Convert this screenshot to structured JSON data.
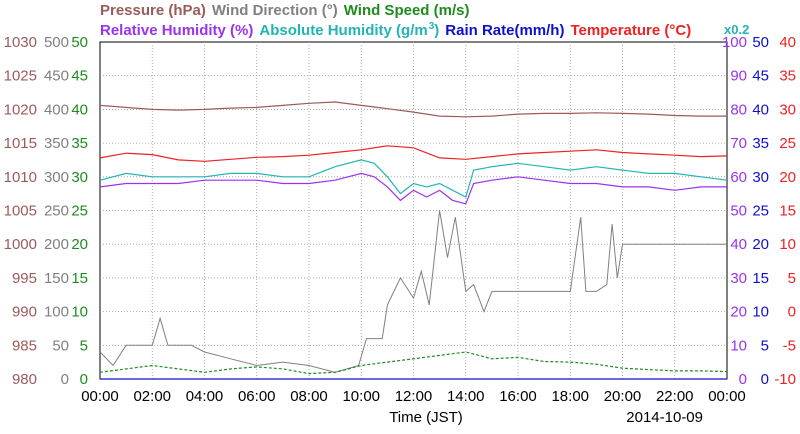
{
  "chart_data": {
    "type": "line",
    "date": "2014-10-09",
    "xlabel": "Time (JST)",
    "x_ticks": [
      "00:00",
      "02:00",
      "04:00",
      "06:00",
      "08:00",
      "10:00",
      "12:00",
      "14:00",
      "16:00",
      "18:00",
      "20:00",
      "22:00",
      "00:00"
    ],
    "legend_row1": [
      {
        "name": "Pressure (hPa)",
        "color": "#9b5b5b"
      },
      {
        "name": "Wind Direction (°)",
        "color": "#808080"
      },
      {
        "name": "Wind Speed (m/s)",
        "color": "#1e8c1e"
      }
    ],
    "legend_row2": [
      {
        "name": "Relative Humidity (%)",
        "color": "#9933ee"
      },
      {
        "name": "Absolute Humidity (g/m",
        "sup": "3",
        "close": ")",
        "color": "#22b5b5"
      },
      {
        "name": "Rain Rate(mm/h)",
        "color": "#1010cc"
      },
      {
        "name": "Temperature (°C)",
        "color": "#ee2222"
      }
    ],
    "abs_humidity_scale_note": "x0.2",
    "axes": {
      "pressure": {
        "ticks": [
          "1030",
          "1025",
          "1020",
          "1015",
          "1010",
          "1005",
          "1000",
          "995",
          "990",
          "985",
          "980"
        ],
        "range": [
          980,
          1030
        ],
        "color": "#9b5b5b"
      },
      "wind_direction": {
        "ticks": [
          "500",
          "450",
          "400",
          "350",
          "300",
          "250",
          "200",
          "150",
          "100",
          "50",
          "0"
        ],
        "range": [
          0,
          500
        ],
        "color": "#808080"
      },
      "wind_speed": {
        "ticks": [
          "50",
          "45",
          "40",
          "35",
          "30",
          "25",
          "20",
          "15",
          "10",
          "5",
          "0"
        ],
        "range": [
          0,
          50
        ],
        "color": "#1e8c1e"
      },
      "relative_humidity": {
        "ticks": [
          "100",
          "90",
          "80",
          "70",
          "60",
          "50",
          "40",
          "30",
          "20",
          "10",
          "0"
        ],
        "range": [
          0,
          100
        ],
        "color": "#9933ee"
      },
      "rain_rate": {
        "ticks": [
          "50",
          "45",
          "40",
          "35",
          "30",
          "25",
          "20",
          "15",
          "10",
          "5",
          "0"
        ],
        "range": [
          0,
          50
        ],
        "color": "#1010cc"
      },
      "temperature": {
        "ticks": [
          "40",
          "35",
          "30",
          "25",
          "20",
          "15",
          "10",
          "5",
          "0",
          "-5",
          "-10"
        ],
        "range": [
          -10,
          40
        ],
        "color": "#ee2222"
      }
    },
    "series": [
      {
        "name": "Pressure (hPa)",
        "color": "#9b5b5b",
        "hours": [
          0,
          1,
          2,
          3,
          4,
          5,
          6,
          7,
          8,
          9,
          10,
          11,
          12,
          13,
          14,
          15,
          16,
          17,
          18,
          19,
          20,
          21,
          22,
          23,
          24
        ],
        "values": [
          1020.6,
          1020.3,
          1020.0,
          1019.9,
          1020.0,
          1020.2,
          1020.3,
          1020.6,
          1020.9,
          1021.1,
          1020.6,
          1020.1,
          1019.6,
          1019.0,
          1018.9,
          1019.0,
          1019.3,
          1019.4,
          1019.4,
          1019.5,
          1019.4,
          1019.3,
          1019.1,
          1019.0,
          1019.0
        ]
      },
      {
        "name": "Temperature (°C)",
        "color": "#ee2222",
        "hours": [
          0,
          1,
          2,
          3,
          4,
          5,
          6,
          7,
          8,
          9,
          10,
          11,
          12,
          13,
          14,
          15,
          16,
          17,
          18,
          19,
          20,
          21,
          22,
          23,
          24
        ],
        "values": [
          22.8,
          23.5,
          23.3,
          22.5,
          22.3,
          22.6,
          22.9,
          23.0,
          23.2,
          23.6,
          24.0,
          24.6,
          24.3,
          22.8,
          22.6,
          23.0,
          23.4,
          23.6,
          23.8,
          24.0,
          23.6,
          23.4,
          23.2,
          23.0,
          23.1
        ]
      },
      {
        "name": "Absolute Humidity (g/m3)",
        "color": "#22b5b5",
        "hours": [
          0,
          1,
          2,
          3,
          4,
          5,
          6,
          7,
          8,
          9,
          10,
          10.5,
          11,
          11.5,
          12,
          12.5,
          13,
          13.5,
          14,
          14.3,
          15,
          16,
          17,
          18,
          19,
          20,
          21,
          22,
          23,
          24
        ],
        "values": [
          59,
          61,
          60,
          60,
          60,
          61,
          61,
          60,
          60,
          63,
          65,
          64,
          60,
          55,
          58,
          57,
          58,
          56,
          54,
          62,
          63,
          64,
          63,
          62,
          63,
          62,
          61,
          61,
          60,
          59
        ]
      },
      {
        "name": "Relative Humidity (%)",
        "color": "#9933ee",
        "hours": [
          0,
          1,
          2,
          3,
          4,
          5,
          6,
          7,
          8,
          9,
          10,
          10.5,
          11,
          11.5,
          12,
          12.5,
          13,
          13.5,
          14,
          14.3,
          15,
          16,
          17,
          18,
          19,
          20,
          21,
          22,
          23,
          24
        ],
        "values": [
          57,
          58,
          58,
          58,
          59,
          59,
          59,
          58,
          58,
          59,
          61,
          60,
          57,
          53,
          56,
          54,
          56,
          53,
          52,
          58,
          59,
          60,
          59,
          58,
          58,
          57,
          57,
          56,
          57,
          57
        ]
      },
      {
        "name": "Wind Direction (°)",
        "color": "#808080",
        "hours": [
          0,
          0.5,
          1,
          1.5,
          2,
          2.3,
          2.6,
          3,
          3.5,
          4,
          5,
          6,
          7,
          8,
          9,
          9.9,
          10.2,
          10.8,
          11,
          11.5,
          12,
          12.3,
          12.6,
          13,
          13.3,
          13.6,
          14,
          14.3,
          14.7,
          15,
          16,
          17,
          17.7,
          18,
          18.4,
          18.6,
          19,
          19.4,
          19.6,
          19.8,
          20,
          21,
          22,
          23,
          24
        ],
        "values": [
          40,
          20,
          50,
          50,
          50,
          90,
          50,
          50,
          50,
          40,
          30,
          20,
          25,
          20,
          10,
          20,
          60,
          60,
          110,
          150,
          120,
          160,
          110,
          250,
          180,
          240,
          130,
          140,
          100,
          130,
          130,
          130,
          130,
          130,
          240,
          130,
          130,
          140,
          230,
          150,
          200,
          200,
          200,
          200,
          200
        ]
      },
      {
        "name": "Wind Speed (m/s)",
        "color": "#1e8c1e",
        "hours": [
          0,
          1,
          2,
          3,
          4,
          5,
          6,
          7,
          8,
          9,
          10,
          11,
          12,
          13,
          14,
          15,
          16,
          17,
          18,
          19,
          20,
          21,
          22,
          23,
          24
        ],
        "values": [
          1.0,
          1.5,
          2.0,
          1.5,
          1.0,
          1.5,
          1.8,
          1.5,
          0.8,
          1.0,
          2.0,
          2.5,
          3.0,
          3.5,
          4.0,
          3.0,
          3.2,
          2.6,
          2.5,
          2.2,
          1.6,
          1.4,
          1.2,
          1.2,
          1.1
        ]
      },
      {
        "name": "Rain Rate(mm/h)",
        "color": "#1010cc",
        "hours": [
          0,
          24
        ],
        "values": [
          0,
          0
        ]
      }
    ]
  }
}
